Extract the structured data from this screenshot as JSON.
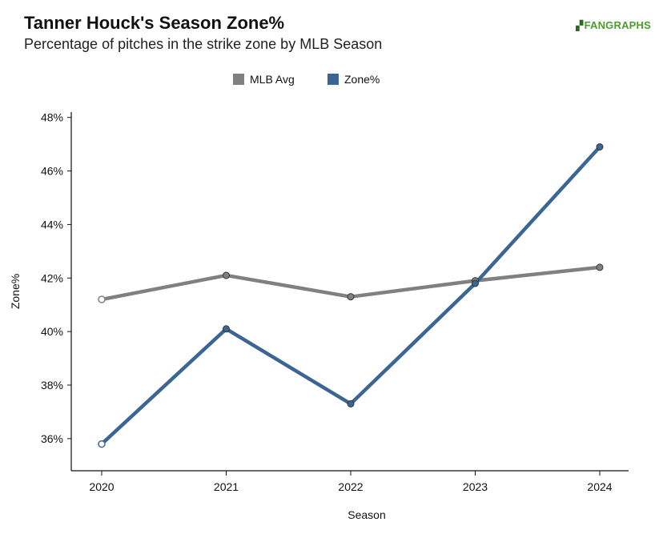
{
  "header": {
    "title": "Tanner Houck's Season Zone%",
    "subtitle": "Percentage of pitches in the strike zone by MLB Season",
    "brand": "FANGRAPHS"
  },
  "colors": {
    "mlb_avg": "#808080",
    "zone": "#3a6595"
  },
  "chart_data": {
    "type": "line",
    "title": "Tanner Houck's Season Zone%",
    "subtitle": "Percentage of pitches in the strike zone by MLB Season",
    "xlabel": "Season",
    "ylabel": "Zone%",
    "x": [
      "2020",
      "2021",
      "2022",
      "2023",
      "2024"
    ],
    "ylim": [
      34.8,
      48.2
    ],
    "yticks": [
      36,
      38,
      40,
      42,
      44,
      46,
      48
    ],
    "ytick_labels": [
      "36%",
      "38%",
      "40%",
      "42%",
      "44%",
      "46%",
      "48%"
    ],
    "legend_position": "top-center",
    "grid": false,
    "series": [
      {
        "name": "MLB Avg",
        "values": [
          41.2,
          42.1,
          41.3,
          41.9,
          42.4
        ]
      },
      {
        "name": "Zone%",
        "values": [
          35.8,
          40.1,
          37.3,
          41.8,
          46.9
        ]
      }
    ]
  }
}
